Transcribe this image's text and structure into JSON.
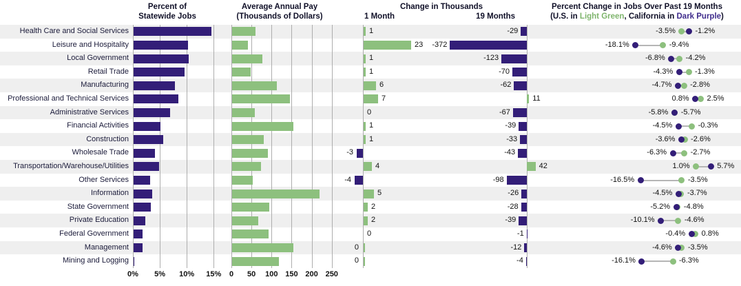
{
  "colors": {
    "purple": "#331E78",
    "green": "#8DC07E",
    "stripe": "#EFEFEF",
    "grid": "#ADADAD",
    "connector": "#B5B5B5",
    "green_text": "#7FB56D",
    "purple_text": "#3F2C8C"
  },
  "headers": {
    "panel1_line1": "Percent of",
    "panel1_line2": "Statewide Jobs",
    "panel2_line1": "Average Annual Pay",
    "panel2_line2": "(Thousands of Dollars)",
    "panel3_title": "Change in Thousands",
    "panel3_col1": "1 Month",
    "panel3_col2": "19 Months",
    "panel4_title": "Percent Change in Jobs Over Past 19 Months",
    "panel4_sub_prefix": "(U.S. in ",
    "panel4_sub_green": "Light Green",
    "panel4_sub_mid": ", California in ",
    "panel4_sub_purple": "Dark Purple",
    "panel4_sub_suffix": ")"
  },
  "axes": {
    "percent_ticks": [
      "0%",
      "5%",
      "10%",
      "15%"
    ],
    "pay_ticks": [
      "0",
      "50",
      "100",
      "150",
      "200",
      "250"
    ]
  },
  "chart_data": {
    "type": "bar",
    "panels": [
      {
        "id": "pct_jobs",
        "type": "bar",
        "title": "Percent of Statewide Jobs",
        "xlim": [
          0,
          15
        ],
        "unit": "%"
      },
      {
        "id": "avg_pay",
        "type": "bar",
        "title": "Average Annual Pay (Thousands of Dollars)",
        "xlim": [
          0,
          250
        ]
      },
      {
        "id": "change",
        "type": "bar",
        "title": "Change in Thousands",
        "columns": [
          "1 Month",
          "19 Months"
        ]
      },
      {
        "id": "pct_change",
        "type": "scatter",
        "title": "Percent Change in Jobs Over Past 19 Months",
        "series": [
          "U.S. (Light Green)",
          "California (Dark Purple)"
        ]
      }
    ],
    "rows": [
      {
        "sector": "Health Care and Social Services",
        "pct_jobs": 14.5,
        "avg_pay": 58,
        "chg_1mo": 1,
        "chg_19mo": -29,
        "us_pct": -3.5,
        "ca_pct": -1.2,
        "us_label": "-3.5%",
        "ca_label": "-1.2%"
      },
      {
        "sector": "Leisure and Hospitality",
        "pct_jobs": 10.1,
        "avg_pay": 39,
        "chg_1mo": 23,
        "chg_19mo": -372,
        "us_pct": -9.4,
        "ca_pct": -18.1,
        "us_label": "-9.4%",
        "ca_label": "-18.1%"
      },
      {
        "sector": "Local Government",
        "pct_jobs": 10.2,
        "avg_pay": 75,
        "chg_1mo": 1,
        "chg_19mo": -123,
        "us_pct": -4.2,
        "ca_pct": -6.8,
        "us_label": "-4.2%",
        "ca_label": "-6.8%"
      },
      {
        "sector": "Retail Trade",
        "pct_jobs": 9.5,
        "avg_pay": 46,
        "chg_1mo": 1,
        "chg_19mo": -70,
        "us_pct": -1.3,
        "ca_pct": -4.3,
        "us_label": "-1.3%",
        "ca_label": "-4.3%"
      },
      {
        "sector": "Manufacturing",
        "pct_jobs": 7.7,
        "avg_pay": 112,
        "chg_1mo": 6,
        "chg_19mo": -62,
        "us_pct": -2.8,
        "ca_pct": -4.7,
        "us_label": "-2.8%",
        "ca_label": "-4.7%"
      },
      {
        "sector": "Professional and Technical Services",
        "pct_jobs": 8.3,
        "avg_pay": 144,
        "chg_1mo": 7,
        "chg_19mo": 11,
        "us_pct": 2.5,
        "ca_pct": 0.8,
        "us_label": "2.5%",
        "ca_label": "0.8%"
      },
      {
        "sector": "Administrative Services",
        "pct_jobs": 6.8,
        "avg_pay": 57,
        "chg_1mo": 0,
        "chg_19mo": -67,
        "us_pct": -5.7,
        "ca_pct": -5.8,
        "us_label": "-5.7%",
        "ca_label": "-5.8%",
        "zero_label_side": "right"
      },
      {
        "sector": "Financial Activities",
        "pct_jobs": 5.0,
        "avg_pay": 152,
        "chg_1mo": 1,
        "chg_19mo": -39,
        "us_pct": -0.3,
        "ca_pct": -4.5,
        "us_label": "-0.3%",
        "ca_label": "-4.5%"
      },
      {
        "sector": "Construction",
        "pct_jobs": 5.5,
        "avg_pay": 79,
        "chg_1mo": 1,
        "chg_19mo": -33,
        "us_pct": -2.6,
        "ca_pct": -3.6,
        "us_label": "-2.6%",
        "ca_label": "-3.6%"
      },
      {
        "sector": "Wholesale Trade",
        "pct_jobs": 4.0,
        "avg_pay": 89,
        "chg_1mo": -3,
        "chg_19mo": -43,
        "us_pct": -2.7,
        "ca_pct": -6.3,
        "us_label": "-2.7%",
        "ca_label": "-6.3%"
      },
      {
        "sector": "Transportation/Warehouse/Utilities",
        "pct_jobs": 4.7,
        "avg_pay": 72,
        "chg_1mo": 4,
        "chg_19mo": 42,
        "us_pct": 1.0,
        "ca_pct": 5.7,
        "us_label": "1.0%",
        "ca_label": "5.7%"
      },
      {
        "sector": "Other Services",
        "pct_jobs": 3.1,
        "avg_pay": 51,
        "chg_1mo": -4,
        "chg_19mo": -98,
        "us_pct": -3.5,
        "ca_pct": -16.5,
        "us_label": "-3.5%",
        "ca_label": "-16.5%"
      },
      {
        "sector": "Information",
        "pct_jobs": 3.5,
        "avg_pay": 217,
        "chg_1mo": 5,
        "chg_19mo": -26,
        "us_pct": -3.7,
        "ca_pct": -4.5,
        "us_label": "-3.7%",
        "ca_label": "-4.5%"
      },
      {
        "sector": "State Government",
        "pct_jobs": 3.2,
        "avg_pay": 93,
        "chg_1mo": 2,
        "chg_19mo": -28,
        "us_pct": -4.8,
        "ca_pct": -5.2,
        "us_label": "-4.8%",
        "ca_label": "-5.2%"
      },
      {
        "sector": "Private Education",
        "pct_jobs": 2.2,
        "avg_pay": 66,
        "chg_1mo": 2,
        "chg_19mo": -39,
        "us_pct": -4.6,
        "ca_pct": -10.1,
        "us_label": "-4.6%",
        "ca_label": "-10.1%"
      },
      {
        "sector": "Federal Government",
        "pct_jobs": 1.7,
        "avg_pay": 91,
        "chg_1mo": 0,
        "chg_19mo": -1,
        "us_pct": 0.8,
        "ca_pct": -0.4,
        "us_label": "0.8%",
        "ca_label": "-0.4%",
        "zero_label_side": "right"
      },
      {
        "sector": "Management",
        "pct_jobs": 1.7,
        "avg_pay": 153,
        "chg_1mo": 0,
        "chg_19mo": -12,
        "us_pct": -3.5,
        "ca_pct": -4.6,
        "us_label": "-3.5%",
        "ca_label": "-4.6%",
        "zero_label_side": "left"
      },
      {
        "sector": "Mining and Logging",
        "pct_jobs": 0.1,
        "avg_pay": 116,
        "chg_1mo": 0,
        "chg_19mo": -4,
        "us_pct": -6.3,
        "ca_pct": -16.1,
        "us_label": "-6.3%",
        "ca_label": "-16.1%",
        "zero_label_side": "left"
      }
    ]
  }
}
